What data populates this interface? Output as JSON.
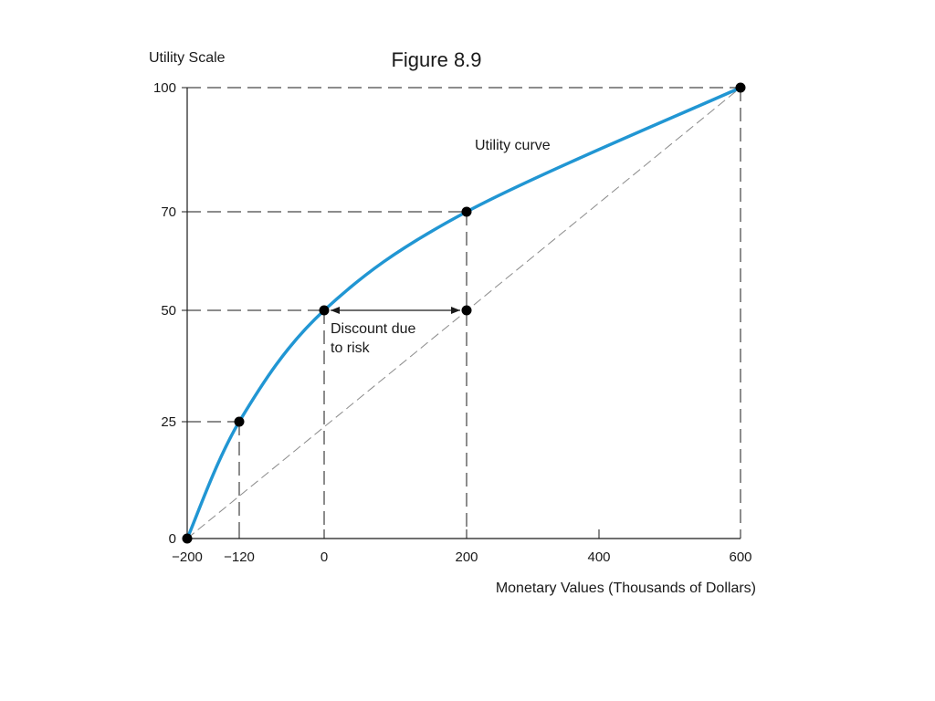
{
  "chart_data": {
    "type": "line",
    "title": "Figure 8.9",
    "ylabel": "Utility Scale",
    "xlabel": "Monetary Values (Thousands of Dollars)",
    "x_ticks": [
      "−200",
      "−120",
      "0",
      "200",
      "400",
      "600"
    ],
    "x_tick_values": [
      -200,
      -120,
      0,
      200,
      400,
      600
    ],
    "y_ticks": [
      "0",
      "25",
      "50",
      "70",
      "100"
    ],
    "y_tick_values": [
      0,
      25,
      50,
      70,
      100
    ],
    "xlim": [
      -200,
      600
    ],
    "ylim": [
      0,
      100
    ],
    "series": [
      {
        "name": "Utility curve",
        "x": [
          -200,
          -120,
          0,
          200,
          600
        ],
        "y": [
          0,
          25,
          50,
          70,
          100
        ]
      }
    ],
    "risk_neutral_line": {
      "x": [
        -200,
        600
      ],
      "y": [
        0,
        100
      ]
    },
    "highlight_point": {
      "x": 200,
      "y": 50
    },
    "annotations": {
      "curve_label": "Utility curve",
      "discount_line1": "Discount due",
      "discount_line2": "to risk"
    },
    "colors": {
      "curve": "#2196d3",
      "lines": "#1a1a1a",
      "diagonal": "#8a8a8a"
    }
  }
}
